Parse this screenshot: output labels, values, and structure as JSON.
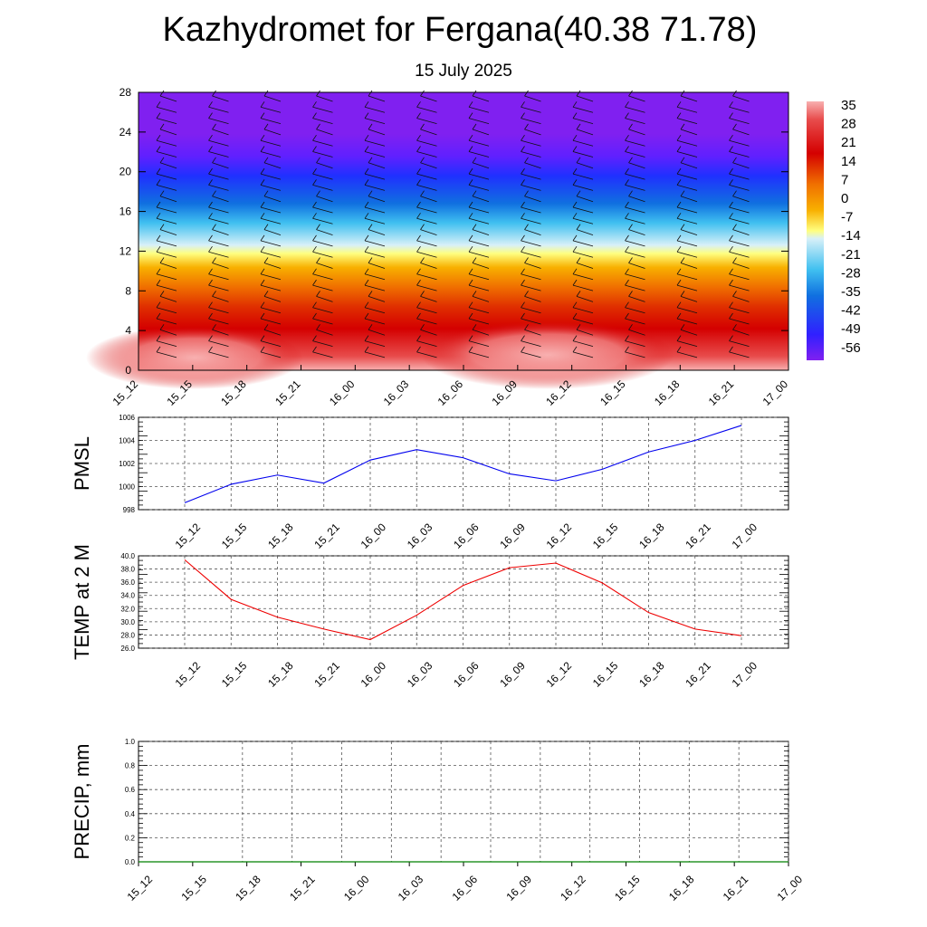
{
  "header": {
    "title": "Kazhydromet for Fergana(40.38 71.78)",
    "date": "15 July 2025"
  },
  "time_labels": [
    "15_12",
    "15_15",
    "15_18",
    "15_21",
    "16_00",
    "16_03",
    "16_06",
    "16_09",
    "16_12",
    "16_15",
    "16_18",
    "16_21",
    "17_00"
  ],
  "colors": {
    "pmsl_line": "#0000ee",
    "temp_line": "#ee0000",
    "precip_line": "#008000",
    "grid": "#000000"
  },
  "chart_data": [
    {
      "type": "heatmap",
      "variable": "temperature_vertical_section",
      "x": [
        "15_12",
        "15_15",
        "15_18",
        "15_21",
        "16_00",
        "16_03",
        "16_06",
        "16_09",
        "16_12",
        "16_15",
        "16_18",
        "16_21",
        "17_00"
      ],
      "y_ticks": [
        "0",
        "4",
        "8",
        "12",
        "16",
        "20",
        "24",
        "28"
      ],
      "ylim": [
        0,
        28
      ],
      "colorbar": {
        "labels": [
          "35",
          "28",
          "21",
          "14",
          "7",
          "0",
          "-7",
          "-14",
          "-21",
          "-28",
          "-35",
          "-42",
          "-49",
          "-56"
        ],
        "range": [
          -60,
          38
        ]
      },
      "wind_barbs": true
    },
    {
      "type": "line",
      "ylabel": "PMSL",
      "x": [
        "15_12",
        "15_15",
        "15_18",
        "15_21",
        "16_00",
        "16_03",
        "16_06",
        "16_09",
        "16_12",
        "16_15",
        "16_18",
        "16_21",
        "17_00"
      ],
      "values": [
        998.6,
        1000.2,
        1001.0,
        1000.3,
        1002.3,
        1003.2,
        1002.5,
        1001.1,
        1000.5,
        1001.5,
        1003.0,
        1004.0,
        1005.3
      ],
      "ylim": [
        998,
        1006
      ],
      "y_ticks": [
        "998",
        "1000",
        "1002",
        "1004",
        "1006"
      ],
      "grid": true
    },
    {
      "type": "line",
      "ylabel": "TEMP at 2 M",
      "x": [
        "15_12",
        "15_15",
        "15_18",
        "15_21",
        "16_00",
        "16_03",
        "16_06",
        "16_09",
        "16_12",
        "16_15",
        "16_18",
        "16_21",
        "17_00"
      ],
      "values": [
        39.4,
        33.4,
        30.7,
        28.9,
        27.3,
        31.0,
        35.5,
        38.2,
        38.9,
        35.9,
        31.4,
        28.9,
        27.9
      ],
      "ylim": [
        26.0,
        40.0
      ],
      "y_ticks": [
        "26.0",
        "28.0",
        "30.0",
        "32.0",
        "34.0",
        "36.0",
        "38.0",
        "40.0"
      ],
      "grid": true
    },
    {
      "type": "line",
      "ylabel": "PRECIP, mm",
      "x": [
        "15_12",
        "15_15",
        "15_18",
        "15_21",
        "16_00",
        "16_03",
        "16_06",
        "16_09",
        "16_12",
        "16_15",
        "16_18",
        "16_21",
        "17_00"
      ],
      "values": [
        0,
        0,
        0,
        0,
        0,
        0,
        0,
        0,
        0,
        0,
        0,
        0,
        0
      ],
      "ylim": [
        0.0,
        1.0
      ],
      "y_ticks": [
        "0.0",
        "0.2",
        "0.4",
        "0.6",
        "0.8",
        "1.0"
      ],
      "grid": true
    }
  ]
}
